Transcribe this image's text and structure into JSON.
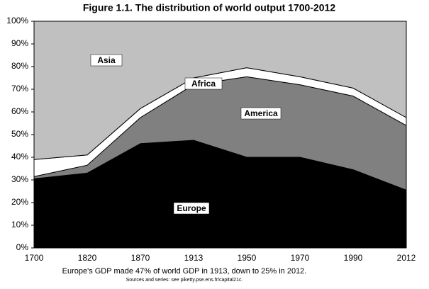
{
  "chart_data": {
    "type": "stacked-area",
    "title": "Figure 1.1. The distribution of world output 1700-2012",
    "caption": "Europe's GDP made 47% of world GDP in 1913, down to 25% in 2012.",
    "source": "Sources and series: see piketty.pse.ens.fr/capital21c.",
    "categories": [
      "1700",
      "1820",
      "1870",
      "1913",
      "1950",
      "1970",
      "1990",
      "2012"
    ],
    "series": [
      {
        "name": "Europe",
        "color": "#000000",
        "values": [
          30.5,
          33,
          46,
          47.5,
          40,
          40,
          34.5,
          25.5
        ]
      },
      {
        "name": "America",
        "color": "#808080",
        "values": [
          1,
          3.5,
          11.5,
          24.5,
          35.5,
          32,
          32.5,
          28.5
        ]
      },
      {
        "name": "Africa",
        "color": "#ffffff",
        "values": [
          7.5,
          4.5,
          4,
          3,
          4,
          3.5,
          3.5,
          3.5
        ]
      },
      {
        "name": "Asia",
        "color": "#c0c0c0",
        "values": [
          61,
          59,
          38.5,
          25,
          20.5,
          24.5,
          29.5,
          42.5
        ]
      }
    ],
    "ylim": [
      0,
      100
    ],
    "yticks": [
      {
        "value": 0,
        "label": "0%"
      },
      {
        "value": 10,
        "label": "10%"
      },
      {
        "value": 20,
        "label": "20%"
      },
      {
        "value": 30,
        "label": "30%"
      },
      {
        "value": 40,
        "label": "40%"
      },
      {
        "value": 50,
        "label": "50%"
      },
      {
        "value": 60,
        "label": "60%"
      },
      {
        "value": 70,
        "label": "70%"
      },
      {
        "value": 80,
        "label": "80%"
      },
      {
        "value": 90,
        "label": "90%"
      },
      {
        "value": 100,
        "label": "100%"
      }
    ]
  }
}
